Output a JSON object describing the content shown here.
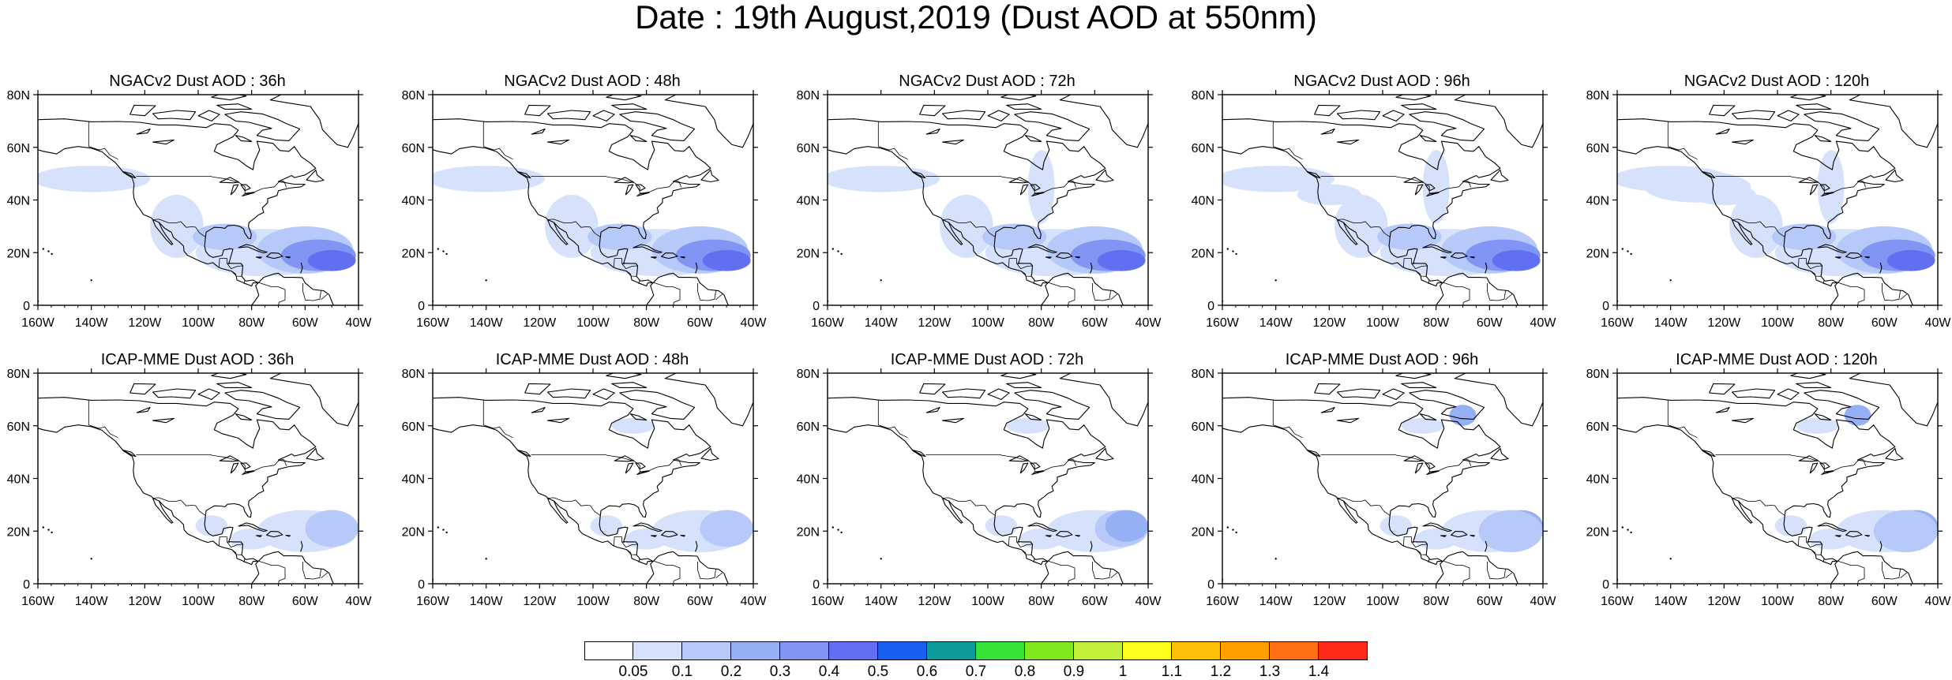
{
  "title": "Date : 19th August,2019 (Dust AOD at 550nm)",
  "axis": {
    "lon_ticks": [
      "160W",
      "140W",
      "120W",
      "100W",
      "80W",
      "60W",
      "40W"
    ],
    "lat_ticks": [
      "80N",
      "60N",
      "40N",
      "20N",
      "0"
    ],
    "lon_range": [
      -160,
      -40
    ],
    "lat_range": [
      0,
      80
    ]
  },
  "panels": [
    {
      "title": "NGACv2 Dust AOD : 36h",
      "model": "NGACv2",
      "lead": "36h"
    },
    {
      "title": "NGACv2 Dust AOD : 48h",
      "model": "NGACv2",
      "lead": "48h"
    },
    {
      "title": "NGACv2 Dust AOD : 72h",
      "model": "NGACv2",
      "lead": "72h"
    },
    {
      "title": "NGACv2 Dust AOD : 96h",
      "model": "NGACv2",
      "lead": "96h"
    },
    {
      "title": "NGACv2 Dust AOD : 120h",
      "model": "NGACv2",
      "lead": "120h"
    },
    {
      "title": "ICAP-MME Dust AOD : 36h",
      "model": "ICAP-MME",
      "lead": "36h"
    },
    {
      "title": "ICAP-MME Dust AOD : 48h",
      "model": "ICAP-MME",
      "lead": "48h"
    },
    {
      "title": "ICAP-MME Dust AOD : 72h",
      "model": "ICAP-MME",
      "lead": "72h"
    },
    {
      "title": "ICAP-MME Dust AOD : 96h",
      "model": "ICAP-MME",
      "lead": "96h"
    },
    {
      "title": "ICAP-MME Dust AOD : 120h",
      "model": "ICAP-MME",
      "lead": "120h"
    }
  ],
  "colorbar": {
    "labels": [
      "0.05",
      "0.1",
      "0.2",
      "0.3",
      "0.4",
      "0.5",
      "0.6",
      "0.7",
      "0.8",
      "0.9",
      "1",
      "1.1",
      "1.2",
      "1.3",
      "1.4"
    ],
    "colors": [
      "#ffffff",
      "#d6e2fb",
      "#b6c9f8",
      "#96b0f6",
      "#8195f4",
      "#6170f0",
      "#1a5ff0",
      "#0d9b9b",
      "#36e236",
      "#7fe81e",
      "#c1f03c",
      "#ffff1e",
      "#ffc00a",
      "#ff9f00",
      "#ff7012",
      "#ff2a1a"
    ]
  },
  "dust_levels_color": {
    "light": "#d6e2fb",
    "medium": "#b6c9f8",
    "strong": "#96b0f6",
    "heavy": "#8195f4",
    "peak": "#6170f0"
  }
}
